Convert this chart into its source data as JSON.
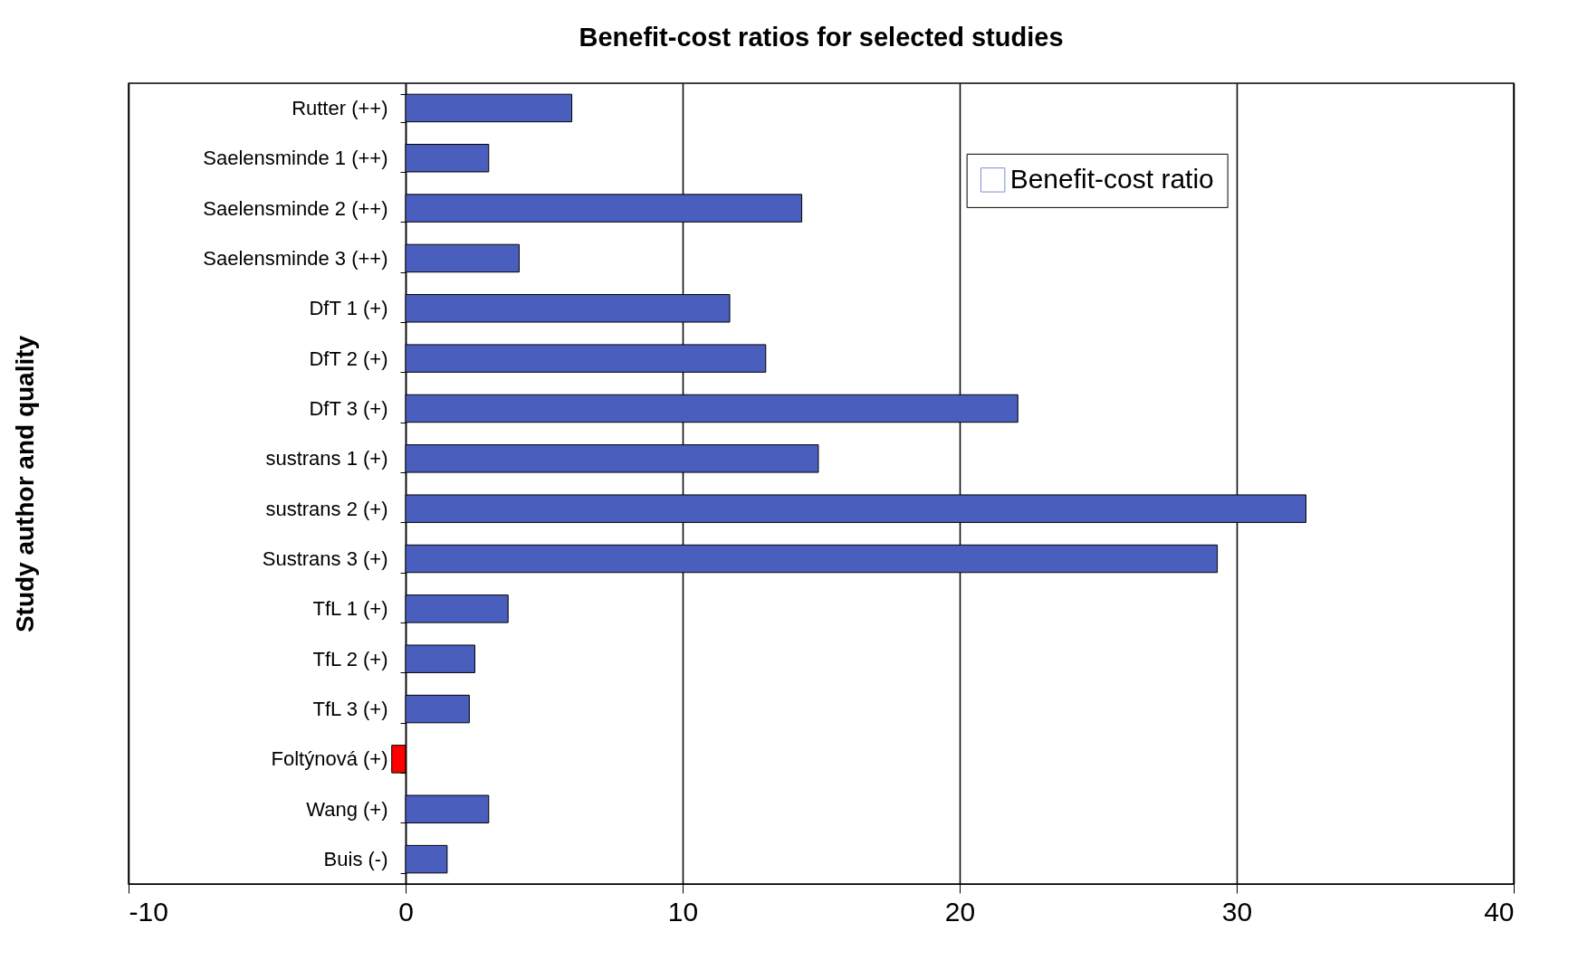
{
  "chart_data": {
    "type": "bar",
    "orientation": "horizontal",
    "title": "Benefit-cost ratios for selected studies",
    "ylabel": "Study author and quality",
    "categories": [
      "Rutter (++)",
      "Saelensminde 1 (++)",
      "Saelensminde 2 (++)",
      "Saelensminde 3 (++)",
      "DfT 1 (+)",
      "DfT 2 (+)",
      "DfT 3 (+)",
      "sustrans 1 (+)",
      "sustrans 2 (+)",
      "Sustrans 3 (+)",
      "TfL 1 (+)",
      "TfL  2 (+)",
      "TfL 3 (+)",
      "Foltýnová (+)",
      "Wang (+)",
      "Buis (-)"
    ],
    "series": [
      {
        "name": "Benefit-cost ratio",
        "color": "#4a5ebe",
        "colors": [
          "#4a5ebe",
          "#4a5ebe",
          "#4a5ebe",
          "#4a5ebe",
          "#4a5ebe",
          "#4a5ebe",
          "#4a5ebe",
          "#4a5ebe",
          "#4a5ebe",
          "#4a5ebe",
          "#4a5ebe",
          "#4a5ebe",
          "#4a5ebe",
          "#ff0000",
          "#4a5ebe",
          "#4a5ebe"
        ],
        "values": [
          6.0,
          3.0,
          14.3,
          4.1,
          11.7,
          13.0,
          22.1,
          14.9,
          32.5,
          29.3,
          3.7,
          2.5,
          2.3,
          -0.5,
          3.0,
          1.5
        ]
      }
    ],
    "xlim": [
      -10,
      40
    ],
    "xticks": [
      -10,
      0,
      10,
      20,
      30,
      40
    ],
    "grid": "x",
    "legend": "top right"
  }
}
